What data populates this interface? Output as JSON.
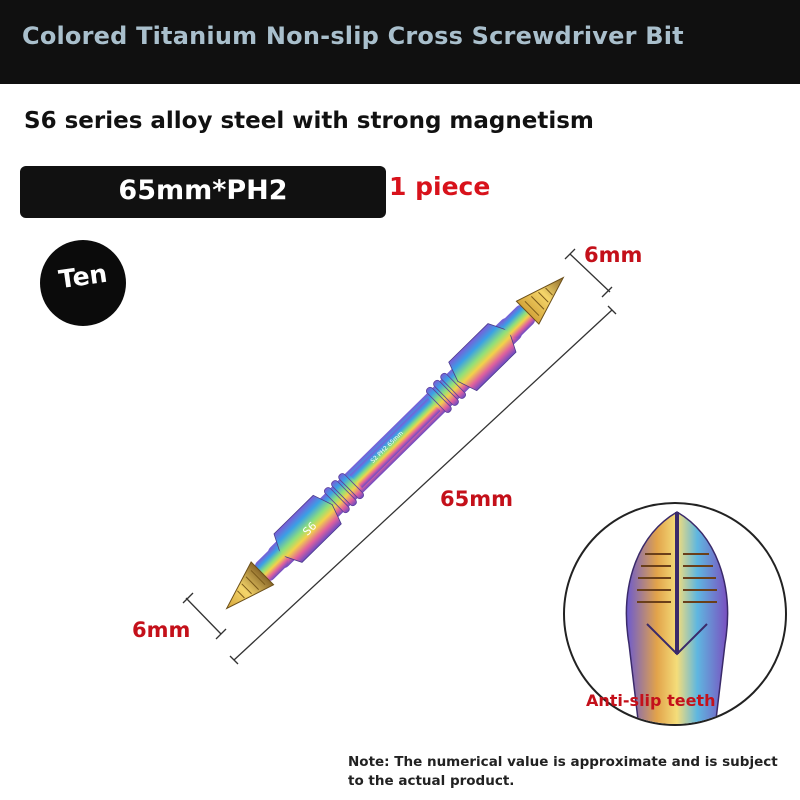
{
  "header": {
    "title": "Colored Titanium Non-slip Cross Screwdriver Bit"
  },
  "subtitle": "S6 series alloy steel with strong magnetism",
  "spec": {
    "label": "65mm*PH2",
    "quantity": "1 piece"
  },
  "badge": {
    "label": "Ten"
  },
  "dimensions": {
    "tip_top": "6mm",
    "length": "65mm",
    "tip_bottom": "6mm"
  },
  "bit_markings": {
    "hex_code": "S6",
    "shaft_text": "S2 PH2 65mm"
  },
  "detail": {
    "label": "Anti-slip teeth"
  },
  "note": "Note: The numerical value is approximate and is subject to the actual product.",
  "colors": {
    "header_bg": "#101010",
    "header_text": "#a9bfcc",
    "accent_red": "#c4101a",
    "quantity_red": "#d8121b"
  }
}
